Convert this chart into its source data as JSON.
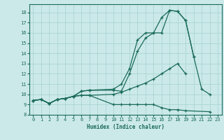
{
  "xlabel": "Humidex (Indice chaleur)",
  "bg_color": "#cce9e9",
  "grid_color": "#aad4d4",
  "line_color": "#1a6b5a",
  "xlim": [
    -0.5,
    23.5
  ],
  "ylim": [
    8,
    18.8
  ],
  "xticks": [
    0,
    1,
    2,
    3,
    4,
    5,
    6,
    7,
    8,
    9,
    10,
    11,
    12,
    13,
    14,
    15,
    16,
    17,
    18,
    19,
    20,
    21,
    22,
    23
  ],
  "yticks": [
    8,
    9,
    10,
    11,
    12,
    13,
    14,
    15,
    16,
    17,
    18
  ],
  "series": [
    {
      "x": [
        0,
        1,
        2,
        3,
        4,
        5,
        6,
        7,
        10,
        11,
        12,
        13,
        14,
        15,
        16,
        17,
        18,
        19,
        20
      ],
      "y": [
        9.4,
        9.5,
        9.1,
        9.5,
        9.6,
        9.8,
        10.3,
        10.4,
        10.4,
        10.3,
        12.0,
        14.2,
        15.5,
        16.0,
        16.0,
        18.2,
        18.1,
        17.2,
        13.7
      ]
    },
    {
      "x": [
        0,
        1,
        2,
        3,
        4,
        5,
        6,
        7,
        10,
        11,
        12,
        13,
        14,
        15,
        16,
        17,
        18,
        19,
        20,
        21,
        22
      ],
      "y": [
        9.4,
        9.5,
        9.1,
        9.5,
        9.6,
        9.8,
        10.3,
        10.4,
        10.5,
        11.0,
        12.5,
        15.3,
        16.0,
        16.0,
        17.5,
        18.2,
        18.1,
        17.2,
        13.7,
        10.5,
        10.0
      ]
    },
    {
      "x": [
        0,
        1,
        2,
        3,
        4,
        5,
        6,
        7,
        10,
        11,
        12,
        13,
        14,
        15,
        16,
        17,
        18,
        19
      ],
      "y": [
        9.4,
        9.5,
        9.1,
        9.5,
        9.6,
        9.8,
        9.9,
        9.9,
        10.0,
        10.2,
        10.5,
        10.8,
        11.1,
        11.5,
        12.0,
        12.5,
        13.0,
        12.0
      ]
    },
    {
      "x": [
        0,
        1,
        2,
        3,
        4,
        5,
        6,
        7,
        10,
        11,
        12,
        13,
        14,
        15,
        16,
        17,
        18,
        19,
        22
      ],
      "y": [
        9.4,
        9.5,
        9.1,
        9.5,
        9.6,
        9.8,
        9.9,
        9.9,
        9.0,
        9.0,
        9.0,
        9.0,
        9.0,
        9.0,
        8.7,
        8.5,
        8.5,
        8.4,
        8.3
      ]
    }
  ]
}
